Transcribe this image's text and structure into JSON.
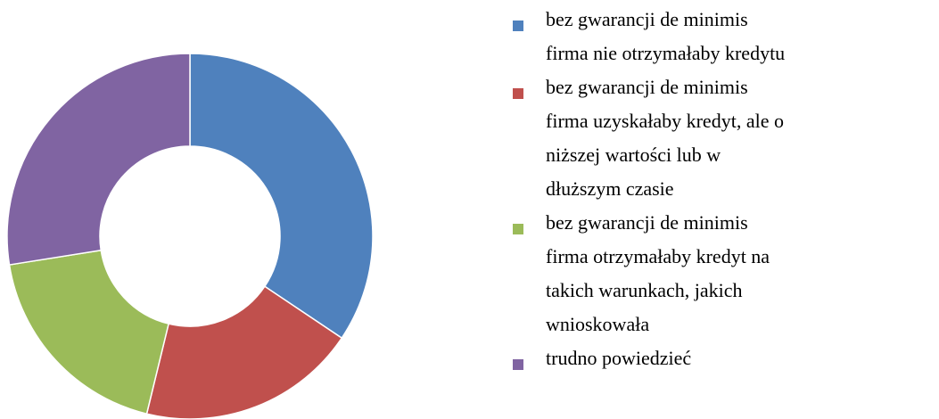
{
  "chart_data": {
    "type": "donut",
    "categories": [
      "bez gwarancji de minimis\nfirma nie otrzymałaby kredytu",
      "bez gwarancji de minimis\nfirma uzyskałaby kredyt, ale o\nniższej wartości lub w\ndłuższym czasie",
      "bez gwarancji de minimis\nfirma otrzymałaby kredyt na\ntakich warunkach, jakich\nwnioskowała",
      "trudno powiedzieć"
    ],
    "values": [
      34.4,
      19.4,
      18.7,
      27.5
    ],
    "colors": [
      "#4f81bd",
      "#c0504d",
      "#9bbb59",
      "#8064a2"
    ],
    "legend": "right"
  }
}
